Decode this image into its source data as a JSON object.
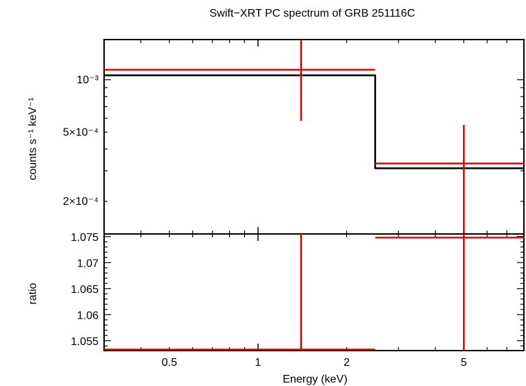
{
  "chart_data": [
    {
      "type": "line",
      "title": "Swift−XRT PC spectrum of GRB 251116C",
      "xlabel": "",
      "ylabel": "counts s⁻¹ keV⁻¹",
      "xscale": "log",
      "yscale": "log",
      "xlim": [
        0.3,
        8.0
      ],
      "ylim": [
        0.00013,
        0.0017
      ],
      "grid": false,
      "yticks": [
        {
          "value": 0.001,
          "label": "10⁻³"
        },
        {
          "value": 0.0005,
          "label": "5×10⁻⁴"
        },
        {
          "value": 0.0002,
          "label": "2×10⁻⁴"
        }
      ],
      "model": {
        "color": "#000000",
        "steps": [
          {
            "x0": 0.3,
            "x1": 2.5,
            "y": 0.00106
          },
          {
            "x0": 2.5,
            "x1": 8.0,
            "y": 0.00031
          }
        ]
      },
      "data_points": {
        "color": "#dd0000",
        "points": [
          {
            "x": 1.4,
            "xlo": 0.3,
            "xhi": 2.5,
            "y": 0.00114,
            "ylo": 0.00058,
            "yhi": 0.0017
          },
          {
            "x": 5.0,
            "xlo": 2.5,
            "xhi": 8.0,
            "y": 0.00033,
            "ylo": 0.00013,
            "yhi": 0.00055
          }
        ]
      }
    },
    {
      "type": "line",
      "xlabel": "Energy (keV)",
      "ylabel": "ratio",
      "xscale": "log",
      "yscale": "linear",
      "xlim": [
        0.3,
        8.0
      ],
      "ylim": [
        1.0531,
        1.0755
      ],
      "grid": false,
      "xticks": [
        {
          "value": 0.5,
          "label": "0.5"
        },
        {
          "value": 1,
          "label": "1"
        },
        {
          "value": 2,
          "label": "2"
        },
        {
          "value": 5,
          "label": "5"
        }
      ],
      "yticks": [
        {
          "value": 1.075,
          "label": "1.075"
        },
        {
          "value": 1.07,
          "label": "1.07"
        },
        {
          "value": 1.065,
          "label": "1.065"
        },
        {
          "value": 1.06,
          "label": "1.06"
        },
        {
          "value": 1.055,
          "label": "1.055"
        }
      ],
      "data_points": {
        "color": "#dd0000",
        "points": [
          {
            "x": 1.4,
            "xlo": 0.3,
            "xhi": 2.5,
            "y": 1.0533,
            "ylo": 1.0531,
            "yhi": 1.0755
          },
          {
            "x": 5.0,
            "xlo": 2.5,
            "xhi": 8.0,
            "y": 1.0748,
            "ylo": 1.0531,
            "yhi": 1.0755
          }
        ]
      }
    }
  ]
}
